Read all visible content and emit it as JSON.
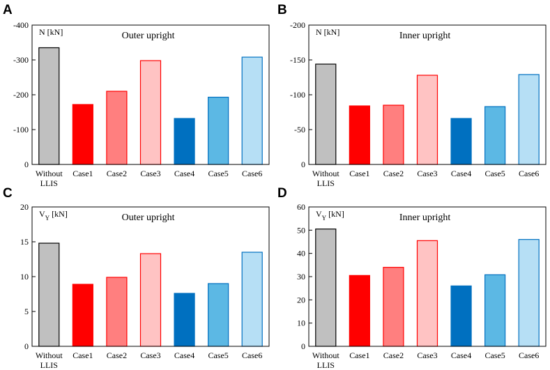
{
  "chart_data": [
    {
      "panel": "A",
      "type": "bar",
      "title": "Outer upright",
      "ylabel": "N [kN]",
      "ylim": [
        0,
        -400
      ],
      "yticks": [
        "0",
        "-100",
        "-200",
        "-300",
        "-400"
      ],
      "categories": [
        "Without LLIS",
        "Case1",
        "Case2",
        "Case3",
        "Case4",
        "Case5",
        "Case6"
      ],
      "values": [
        -335,
        -172,
        -210,
        -298,
        -132,
        -193,
        -308
      ]
    },
    {
      "panel": "B",
      "type": "bar",
      "title": "Inner upright",
      "ylabel": "N [kN]",
      "ylim": [
        0,
        -200
      ],
      "yticks": [
        "0",
        "-50",
        "-100",
        "-150",
        "-200"
      ],
      "categories": [
        "Without LLIS",
        "Case1",
        "Case2",
        "Case3",
        "Case4",
        "Case5",
        "Case6"
      ],
      "values": [
        -144,
        -84,
        -85,
        -128,
        -66,
        -83,
        -129
      ]
    },
    {
      "panel": "C",
      "type": "bar",
      "title": "Outer upright",
      "ylabel": "VY [kN]",
      "ylim": [
        0,
        20
      ],
      "yticks": [
        "0",
        "5",
        "10",
        "15",
        "20"
      ],
      "categories": [
        "Without LLIS",
        "Case1",
        "Case2",
        "Case3",
        "Case4",
        "Case5",
        "Case6"
      ],
      "values": [
        14.8,
        8.9,
        9.9,
        13.3,
        7.6,
        9.0,
        13.5
      ]
    },
    {
      "panel": "D",
      "type": "bar",
      "title": "Inner upright",
      "ylabel": "VY [kN]",
      "ylim": [
        0,
        60
      ],
      "yticks": [
        "0",
        "10",
        "20",
        "30",
        "40",
        "50",
        "60"
      ],
      "categories": [
        "Without LLIS",
        "Case1",
        "Case2",
        "Case3",
        "Case4",
        "Case5",
        "Case6"
      ],
      "values": [
        50.5,
        30.5,
        34.0,
        45.5,
        26.0,
        30.8,
        46.0
      ]
    }
  ],
  "colors": {
    "fills": [
      "#c0c0c0",
      "#ff0000",
      "#ff7f7f",
      "#ffc3c3",
      "#0070c0",
      "#5cb8e4",
      "#b6dff5"
    ],
    "edges": [
      "#000000",
      "#ff0000",
      "#ff0000",
      "#ff0000",
      "#0070c0",
      "#0070c0",
      "#0070c0"
    ]
  }
}
